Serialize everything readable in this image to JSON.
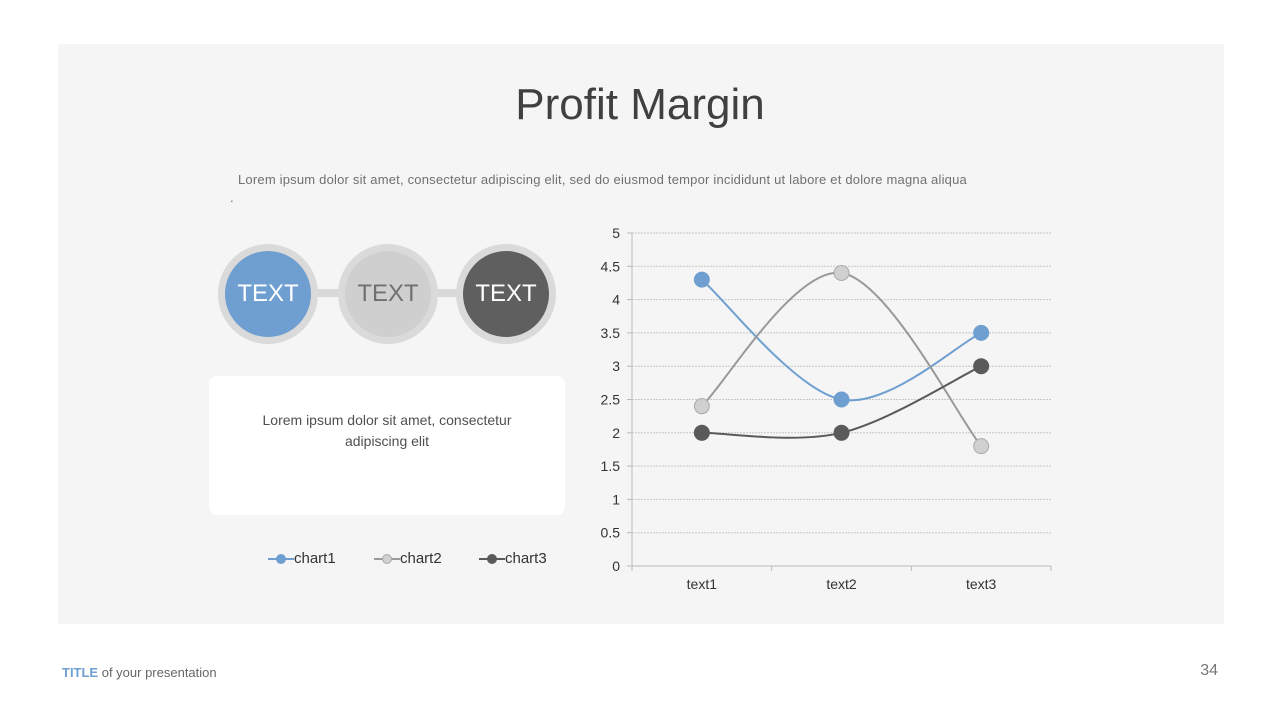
{
  "title": "Profit Margin",
  "subtitle": "Lorem ipsum dolor sit amet, consectetur adipiscing elit, sed do eiusmod tempor incididunt ut labore et dolore magna aliqua",
  "subtitle_tail": ".",
  "circles": [
    {
      "label": "TEXT",
      "color": "#6f9fd1",
      "text_color": "#ffffff"
    },
    {
      "label": "TEXT",
      "color": "#cfcfcf",
      "text_color": "#707070"
    },
    {
      "label": "TEXT",
      "color": "#5f5f5f",
      "text_color": "#ffffff"
    }
  ],
  "box_text": "Lorem ipsum dolor sit amet, consectetur adipiscing elit",
  "footer": {
    "title": "TITLE",
    "rest": " of your presentation",
    "page": "34"
  },
  "chart_data": {
    "type": "line",
    "categories": [
      "text1",
      "text2",
      "text3"
    ],
    "series": [
      {
        "name": "chart1",
        "values": [
          4.3,
          2.5,
          3.5
        ],
        "color": "#6f9fd1",
        "marker": "#6f9fd1"
      },
      {
        "name": "chart2",
        "values": [
          2.4,
          4.4,
          1.8
        ],
        "color": "#999999",
        "marker": "#d0d0d0"
      },
      {
        "name": "chart3",
        "values": [
          2,
          2,
          3
        ],
        "color": "#5a5a5a",
        "marker": "#5a5a5a"
      }
    ],
    "ylim": [
      0,
      5
    ],
    "yticks": [
      "0",
      "0.5",
      "1",
      "1.5",
      "2",
      "2.5",
      "3",
      "3.5",
      "4",
      "4.5",
      "5"
    ],
    "grid": true,
    "legend": "bottom-left",
    "smooth": true
  }
}
